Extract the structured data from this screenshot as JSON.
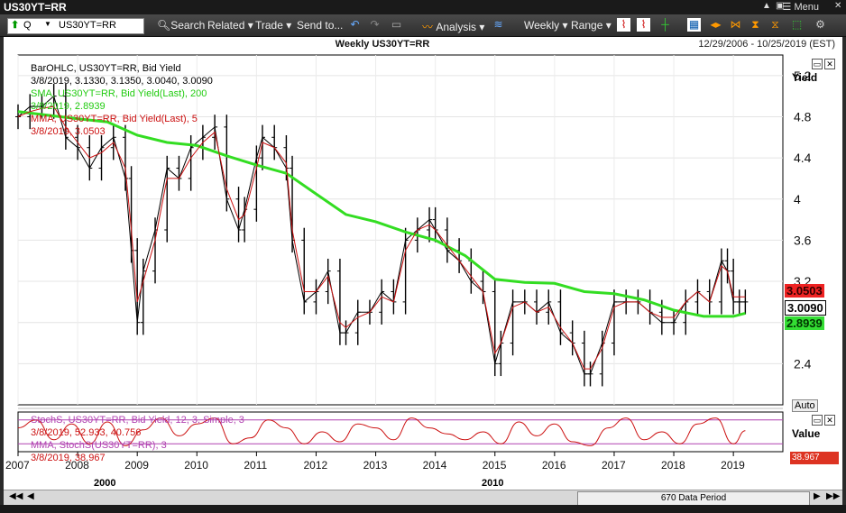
{
  "window": {
    "title": "US30YT=RR",
    "menu_label": "Menu"
  },
  "toolbar": {
    "symbol_prefix": "Q",
    "symbol_value": "US30YT=RR",
    "search": "Search",
    "related": "Related",
    "trade": "Trade",
    "send_to": "Send to...",
    "analysis": "Analysis",
    "interval": "Weekly",
    "range": "Range"
  },
  "chart_header": {
    "title": "Weekly US30YT=RR",
    "date_range": "12/29/2006 - 10/25/2019 (EST)"
  },
  "legend": {
    "bar_label": "BarOHLC, US30YT=RR, Bid Yield",
    "bar_values": "3/8/2019, 3.1330, 3.1350, 3.0040, 3.0090",
    "sma_label": "SMA, US30YT=RR, Bid Yield(Last),  200",
    "sma_values": "3/8/2019, 2.8939",
    "mma_label": "MMA, US30YT=RR, Bid Yield(Last),  5",
    "mma_values": "3/8/2019, 3.0503",
    "stoch_label": "StochS, US30YT=RR, Bid Yield,  12, 3, Simple, 3",
    "stoch_values": "3/8/2019, 52.933, 40.756",
    "stoch_mma_label": "MMA, StochS(US30YT=RR),  3",
    "stoch_mma_values": "3/8/2019, 38.967"
  },
  "price_labels": {
    "mma": "3.0503",
    "last": "3.0090",
    "sma": "2.8939"
  },
  "axis_buttons": {
    "auto": "Auto",
    "upper_title": "Yield",
    "lower_title": "Value",
    "lower_value": "38.967"
  },
  "bottom": {
    "data_period": "670 Data Period",
    "decade_1": "2000",
    "decade_2": "2010"
  },
  "colors": {
    "price": "#000000",
    "sma": "#33dd22",
    "mma": "#cc1111",
    "stoch": "#cc1111",
    "band": "#b040b0"
  },
  "chart_data": [
    {
      "type": "line",
      "title": "Weekly US30YT=RR",
      "ylabel": "Yield",
      "ylim": [
        2.0,
        5.4
      ],
      "yticks": [
        2.4,
        2.8,
        3.2,
        3.6,
        4,
        4.4,
        4.8,
        5.2
      ],
      "ytick_labels": [
        "2.4",
        "2.8",
        "3.2",
        "3.6",
        "4",
        "4.4",
        "4.8",
        "5.2"
      ],
      "xlim": [
        2007.0,
        2019.83
      ],
      "xtick_labels": [
        "2007",
        "2008",
        "2009",
        "2010",
        "2011",
        "2012",
        "2013",
        "2014",
        "2015",
        "2016",
        "2017",
        "2018",
        "2019"
      ],
      "series": [
        {
          "name": "BarOHLC, US30YT=RR, Bid Yield",
          "x": [
            2007.0,
            2007.2,
            2007.4,
            2007.6,
            2007.8,
            2008.0,
            2008.2,
            2008.4,
            2008.6,
            2008.8,
            2008.9,
            2009.0,
            2009.1,
            2009.3,
            2009.5,
            2009.7,
            2009.9,
            2010.1,
            2010.3,
            2010.5,
            2010.7,
            2010.8,
            2011.0,
            2011.1,
            2011.3,
            2011.5,
            2011.6,
            2011.8,
            2012.0,
            2012.2,
            2012.4,
            2012.5,
            2012.7,
            2012.9,
            2013.1,
            2013.3,
            2013.5,
            2013.7,
            2013.9,
            2014.0,
            2014.2,
            2014.4,
            2014.6,
            2014.8,
            2015.0,
            2015.1,
            2015.3,
            2015.5,
            2015.7,
            2015.9,
            2016.1,
            2016.3,
            2016.5,
            2016.6,
            2016.8,
            2017.0,
            2017.2,
            2017.4,
            2017.6,
            2017.8,
            2018.0,
            2018.2,
            2018.4,
            2018.6,
            2018.8,
            2018.9,
            2019.0,
            2019.1,
            2019.2
          ],
          "y": [
            4.8,
            4.9,
            4.9,
            5.0,
            4.6,
            4.5,
            4.3,
            4.5,
            4.6,
            4.2,
            3.5,
            2.8,
            3.3,
            3.7,
            4.3,
            4.2,
            4.5,
            4.6,
            4.7,
            4.0,
            3.7,
            3.9,
            4.4,
            4.6,
            4.5,
            4.3,
            3.6,
            3.0,
            3.1,
            3.3,
            2.7,
            2.7,
            2.9,
            2.9,
            3.1,
            3.0,
            3.6,
            3.7,
            3.8,
            3.7,
            3.5,
            3.4,
            3.2,
            3.1,
            2.4,
            2.6,
            3.0,
            3.0,
            2.9,
            3.0,
            2.7,
            2.6,
            2.3,
            2.3,
            2.6,
            3.0,
            3.0,
            3.0,
            2.9,
            2.8,
            2.8,
            3.0,
            3.1,
            3.0,
            3.4,
            3.3,
            3.0,
            3.0,
            3.0
          ]
        },
        {
          "name": "SMA, US30YT=RR, Bid Yield(Last),  200",
          "x": [
            2007.0,
            2008.0,
            2008.5,
            2009.0,
            2009.5,
            2010.0,
            2010.5,
            2011.0,
            2011.5,
            2012.0,
            2012.5,
            2013.0,
            2013.5,
            2014.0,
            2014.5,
            2015.0,
            2015.5,
            2016.0,
            2016.5,
            2017.0,
            2017.5,
            2018.0,
            2018.5,
            2019.0,
            2019.2
          ],
          "y": [
            4.85,
            4.78,
            4.75,
            4.62,
            4.55,
            4.52,
            4.42,
            4.33,
            4.25,
            4.05,
            3.85,
            3.78,
            3.68,
            3.6,
            3.45,
            3.22,
            3.19,
            3.18,
            3.1,
            3.08,
            3.02,
            2.92,
            2.86,
            2.86,
            2.89
          ]
        },
        {
          "name": "MMA, US30YT=RR, Bid Yield(Last),  5",
          "x": [
            2007.0,
            2007.2,
            2007.4,
            2007.6,
            2007.8,
            2008.0,
            2008.2,
            2008.4,
            2008.6,
            2008.8,
            2008.9,
            2009.0,
            2009.1,
            2009.3,
            2009.5,
            2009.7,
            2009.9,
            2010.1,
            2010.3,
            2010.5,
            2010.7,
            2010.8,
            2011.0,
            2011.1,
            2011.3,
            2011.5,
            2011.6,
            2011.8,
            2012.0,
            2012.2,
            2012.4,
            2012.5,
            2012.7,
            2012.9,
            2013.1,
            2013.3,
            2013.5,
            2013.7,
            2013.9,
            2014.0,
            2014.2,
            2014.4,
            2014.6,
            2014.8,
            2015.0,
            2015.1,
            2015.3,
            2015.5,
            2015.7,
            2015.9,
            2016.1,
            2016.3,
            2016.5,
            2016.6,
            2016.8,
            2017.0,
            2017.2,
            2017.4,
            2017.6,
            2017.8,
            2018.0,
            2018.2,
            2018.4,
            2018.6,
            2018.8,
            2018.9,
            2019.0,
            2019.1,
            2019.2
          ],
          "y": [
            4.8,
            4.85,
            4.88,
            4.9,
            4.7,
            4.55,
            4.4,
            4.45,
            4.55,
            4.3,
            3.7,
            3.0,
            3.2,
            3.6,
            4.2,
            4.2,
            4.4,
            4.55,
            4.65,
            4.1,
            3.8,
            3.85,
            4.3,
            4.55,
            4.5,
            4.35,
            3.7,
            3.1,
            3.1,
            3.25,
            2.8,
            2.75,
            2.85,
            2.9,
            3.05,
            3.0,
            3.5,
            3.7,
            3.75,
            3.7,
            3.55,
            3.4,
            3.25,
            3.1,
            2.5,
            2.6,
            2.95,
            3.0,
            2.9,
            2.95,
            2.75,
            2.6,
            2.35,
            2.35,
            2.55,
            2.95,
            3.0,
            3.0,
            2.9,
            2.85,
            2.85,
            3.0,
            3.1,
            3.0,
            3.35,
            3.3,
            3.05,
            3.05,
            3.05
          ]
        }
      ]
    },
    {
      "type": "line",
      "title": "StochS, US30YT=RR, Bid Yield,  12, 3, Simple, 3",
      "ylabel": "Value",
      "ylim": [
        0,
        100
      ],
      "bands": [
        80,
        20
      ],
      "series": [
        {
          "name": "StochS, US30YT=RR, Bid Yield,  12, 3, Simple, 3",
          "x": [
            2007.0,
            2007.3,
            2007.6,
            2007.9,
            2008.2,
            2008.5,
            2008.8,
            2009.1,
            2009.4,
            2009.7,
            2010.0,
            2010.3,
            2010.6,
            2010.9,
            2011.2,
            2011.5,
            2011.8,
            2012.1,
            2012.4,
            2012.7,
            2013.0,
            2013.3,
            2013.6,
            2013.9,
            2014.2,
            2014.5,
            2014.8,
            2015.1,
            2015.4,
            2015.7,
            2016.0,
            2016.3,
            2016.6,
            2016.9,
            2017.2,
            2017.5,
            2017.8,
            2018.1,
            2018.4,
            2018.7,
            2019.0,
            2019.2
          ],
          "y": [
            60,
            80,
            30,
            70,
            20,
            75,
            15,
            55,
            85,
            40,
            70,
            85,
            20,
            35,
            80,
            60,
            20,
            50,
            25,
            70,
            60,
            30,
            85,
            60,
            45,
            30,
            50,
            20,
            75,
            40,
            70,
            25,
            15,
            60,
            85,
            30,
            50,
            20,
            70,
            85,
            20,
            53
          ]
        }
      ]
    }
  ]
}
